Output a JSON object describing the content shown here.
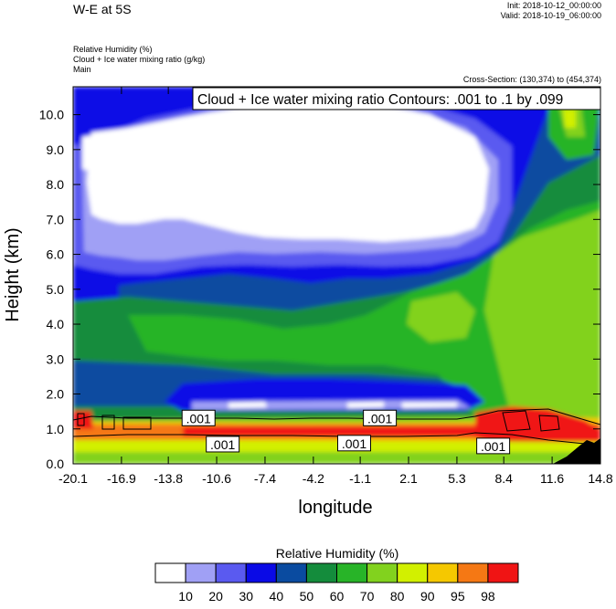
{
  "header": {
    "title": "W-E at 5S",
    "init": "Init: 2018-10-12_00:00:00",
    "valid": "Valid: 2018-10-19_06:00:00",
    "field1": "Relative Humidity   (%)",
    "field2": "Cloud + Ice water mixing ratio   (g/kg)",
    "field3": "Main",
    "cross_section": "Cross-Section: (130,374) to (454,374)",
    "contour_info": "Cloud + Ice water mixing ratio Contours: .001 to .1 by .099"
  },
  "chart_data": {
    "type": "heatmap",
    "title": "",
    "xlabel": "longitude",
    "ylabel": "Height (km)",
    "xlim": [
      -20.1,
      14.8
    ],
    "ylim": [
      0.0,
      10.8
    ],
    "x_ticks": [
      "-20.1",
      "-16.9",
      "-13.8",
      "-10.6",
      "-7.4",
      "-4.2",
      "-1.1",
      "2.1",
      "5.3",
      "8.4",
      "11.6",
      "14.8"
    ],
    "y_ticks": [
      "0.0",
      "1.0",
      "2.0",
      "3.0",
      "4.0",
      "5.0",
      "6.0",
      "7.0",
      "8.0",
      "9.0",
      "10.0"
    ],
    "contour_labels": [
      {
        "text": ".001",
        "x": -11.8,
        "y": 1.3
      },
      {
        "text": ".001",
        "x": -10.2,
        "y": 0.55
      },
      {
        "text": ".001",
        "x": -1.5,
        "y": 0.58
      },
      {
        "text": ".001",
        "x": 0.2,
        "y": 1.3
      },
      {
        "text": ".001",
        "x": 7.7,
        "y": 0.5
      }
    ],
    "colorbar": {
      "title": "Relative Humidity  (%)",
      "levels": [
        "10",
        "20",
        "30",
        "40",
        "50",
        "60",
        "70",
        "80",
        "90",
        "95",
        "98"
      ],
      "colors": [
        "#ffffff",
        "#a0a0f5",
        "#5a5af0",
        "#0a0ae6",
        "#0a4ba0",
        "#148c3c",
        "#28b428",
        "#82d21e",
        "#d2f000",
        "#f5c800",
        "#f57814",
        "#f01414"
      ]
    }
  }
}
